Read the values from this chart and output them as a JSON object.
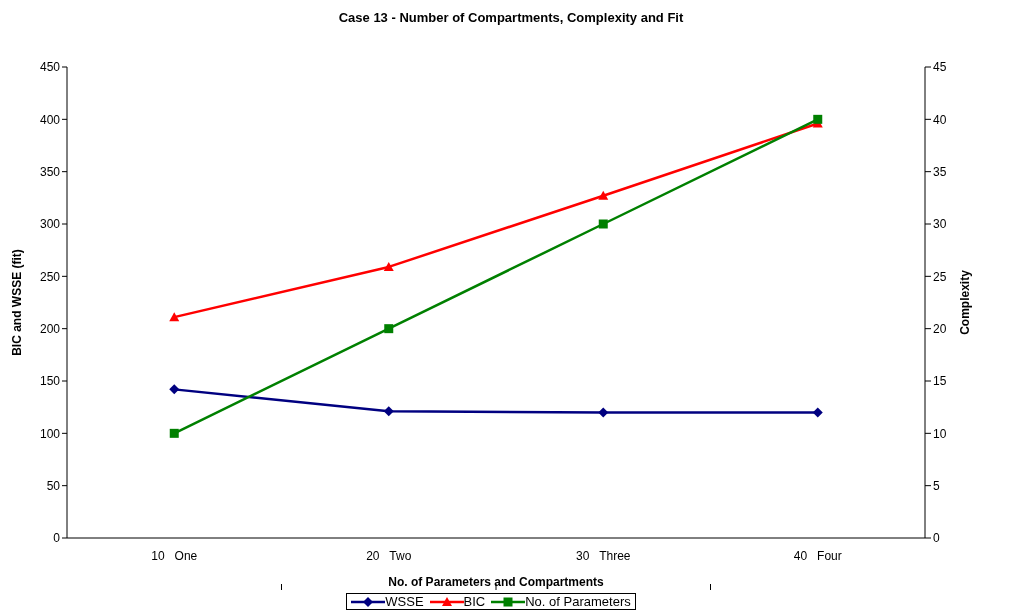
{
  "chart_data": {
    "type": "line",
    "title": "Case 13 - Number of Compartments, Complexity and Fit",
    "xlabel": "No. of Parameters and Compartments",
    "ylabel": "BIC and WSSE (fit)",
    "y2label": "Complexity",
    "categories": [
      "10   One",
      "20   Two",
      "30   Three",
      "40   Four"
    ],
    "series": [
      {
        "name": "WSSE",
        "color": "#000080",
        "marker": "diamond",
        "values": [
          142,
          121,
          120,
          120
        ]
      },
      {
        "name": "BIC",
        "color": "#ff0000",
        "marker": "triangle",
        "values": [
          211,
          259,
          327,
          396
        ]
      },
      {
        "name": "No. of Parameters",
        "color": "#008000",
        "marker": "square",
        "axis": "y2",
        "values": [
          10,
          20,
          30,
          40
        ]
      }
    ],
    "ylim": [
      0,
      450
    ],
    "yticks": [
      0,
      50,
      100,
      150,
      200,
      250,
      300,
      350,
      400,
      450
    ],
    "y2lim": [
      0,
      45
    ],
    "y2ticks": [
      0,
      5,
      10,
      15,
      20,
      25,
      30,
      35,
      40,
      45
    ],
    "legend": "bottom"
  }
}
